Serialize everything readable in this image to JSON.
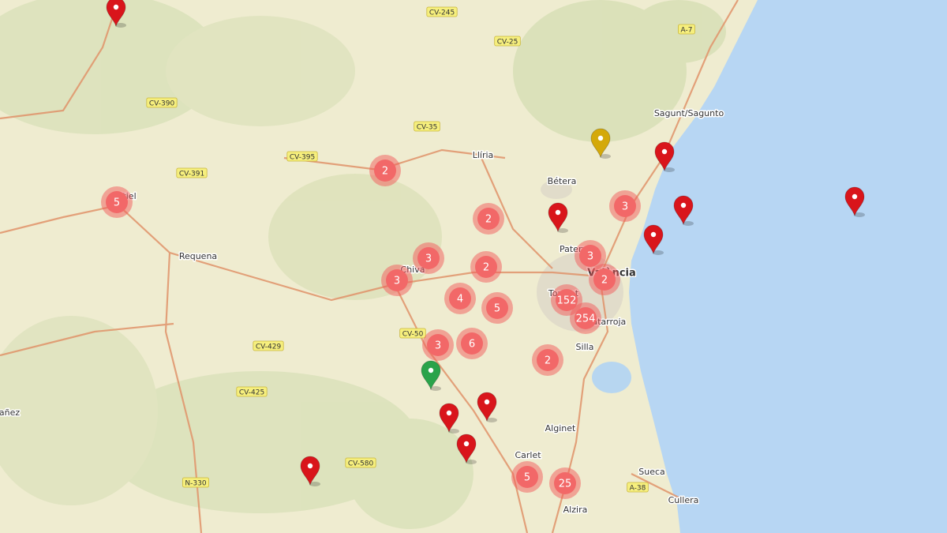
{
  "places": [
    "Sagunt/Sagunto",
    "Llíria",
    "Bétera",
    "Requena",
    "Chiva",
    "Paterna",
    "València",
    "Torrent",
    "Catarroja",
    "Silla",
    "Alginet",
    "Carlet",
    "Sueca",
    "Cullera",
    "Alzira",
    "Utiel",
    "añez"
  ],
  "roads": [
    "CV-245",
    "CV-25",
    "A-7",
    "CV-390",
    "CV-35",
    "CV-395",
    "CV-391",
    "CV-50",
    "CV-429",
    "CV-425",
    "CV-580",
    "N-330",
    "A-38"
  ],
  "clusters": [
    2,
    5,
    2,
    3,
    3,
    2,
    3,
    3,
    2,
    4,
    5,
    152,
    254,
    3,
    6,
    2,
    5,
    25
  ]
}
